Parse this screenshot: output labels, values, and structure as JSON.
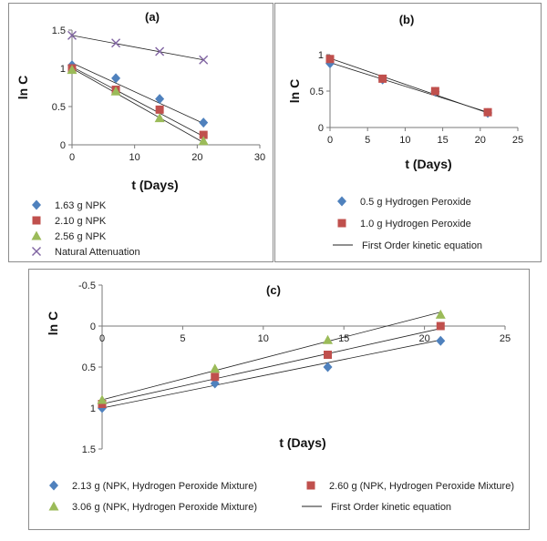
{
  "chart_data": [
    {
      "type": "scatter",
      "panel_label": "(a)",
      "xlabel": "t (Days)",
      "ylabel": "ln C",
      "xlim": [
        0,
        30
      ],
      "ylim": [
        0,
        1.5
      ],
      "xticks": [
        "0",
        "10",
        "20",
        "30"
      ],
      "yticks": [
        "0",
        "0.5",
        "1",
        "1.5"
      ],
      "grid": false,
      "legend_position": "bottom",
      "series": [
        {
          "name": "1.63 g NPK",
          "marker": "diamond",
          "color": "#4f81bd",
          "x": [
            0,
            7,
            14,
            21
          ],
          "y": [
            1.04,
            0.87,
            0.6,
            0.29
          ],
          "fit": [
            1.07,
            0.28
          ]
        },
        {
          "name": "2.10 g NPK",
          "marker": "square",
          "color": "#c0504d",
          "x": [
            0,
            7,
            14,
            21
          ],
          "y": [
            1.0,
            0.72,
            0.46,
            0.13
          ],
          "fit": [
            1.02,
            0.11
          ]
        },
        {
          "name": "2.56 g NPK",
          "marker": "triangle",
          "color": "#9bbb59",
          "x": [
            0,
            7,
            14,
            21
          ],
          "y": [
            0.98,
            0.7,
            0.35,
            0.05
          ],
          "fit": [
            1.0,
            0.03
          ]
        },
        {
          "name": "Natural Attenuation",
          "marker": "x",
          "color": "#8064a2",
          "x": [
            0,
            7,
            14,
            21
          ],
          "y": [
            1.43,
            1.33,
            1.22,
            1.11
          ],
          "fit": [
            1.43,
            1.11
          ]
        }
      ]
    },
    {
      "type": "scatter",
      "panel_label": "(b)",
      "xlabel": "t (Days)",
      "ylabel": "ln C",
      "xlim": [
        0,
        25
      ],
      "ylim": [
        0,
        1
      ],
      "xticks": [
        "0",
        "5",
        "10",
        "15",
        "20",
        "25"
      ],
      "yticks": [
        "0",
        "0.5",
        "1"
      ],
      "grid": false,
      "legend_position": "bottom",
      "series": [
        {
          "name": "0.5 g Hydrogen Peroxide",
          "marker": "diamond",
          "color": "#4f81bd",
          "x": [
            0,
            7,
            14,
            21
          ],
          "y": [
            0.88,
            0.66,
            0.49,
            0.2
          ],
          "fit": [
            0.89,
            0.21
          ]
        },
        {
          "name": "1.0 g Hydrogen Peroxide",
          "marker": "square",
          "color": "#c0504d",
          "x": [
            0,
            7,
            14,
            21
          ],
          "y": [
            0.94,
            0.67,
            0.5,
            0.21
          ],
          "fit": [
            0.95,
            0.2
          ]
        }
      ],
      "fit_legend": "First Order kinetic equation"
    },
    {
      "type": "scatter",
      "panel_label": "(c)",
      "xlabel": "t (Days)",
      "ylabel": "ln C",
      "xlim": [
        0,
        25
      ],
      "ylim": [
        -0.5,
        1.5
      ],
      "xticks": [
        "0",
        "5",
        "10",
        "15",
        "20",
        "25"
      ],
      "yticks": [
        "-0.5",
        "0",
        "0.5",
        "1",
        "1.5"
      ],
      "grid": false,
      "legend_position": "bottom",
      "series": [
        {
          "name": "2.13 g (NPK, Hydrogen Peroxide Mixture)",
          "marker": "diamond",
          "color": "#4f81bd",
          "x": [
            0,
            7,
            14,
            21
          ],
          "y": [
            1.0,
            0.7,
            0.5,
            0.18
          ],
          "fit": [
            1.0,
            0.17
          ]
        },
        {
          "name": "2.60 g (NPK, Hydrogen Peroxide Mixture)",
          "marker": "square",
          "color": "#c0504d",
          "x": [
            0,
            7,
            14,
            21
          ],
          "y": [
            0.95,
            0.62,
            0.35,
            0.0
          ],
          "fit": [
            0.95,
            0.03
          ]
        },
        {
          "name": "3.06 g (NPK, Hydrogen Peroxide Mixture)",
          "marker": "triangle",
          "color": "#9bbb59",
          "x": [
            0,
            7,
            14,
            21
          ],
          "y": [
            0.9,
            0.52,
            0.17,
            -0.14
          ],
          "fit": [
            0.9,
            -0.17
          ]
        }
      ],
      "fit_legend": "First Order kinetic equation"
    }
  ]
}
